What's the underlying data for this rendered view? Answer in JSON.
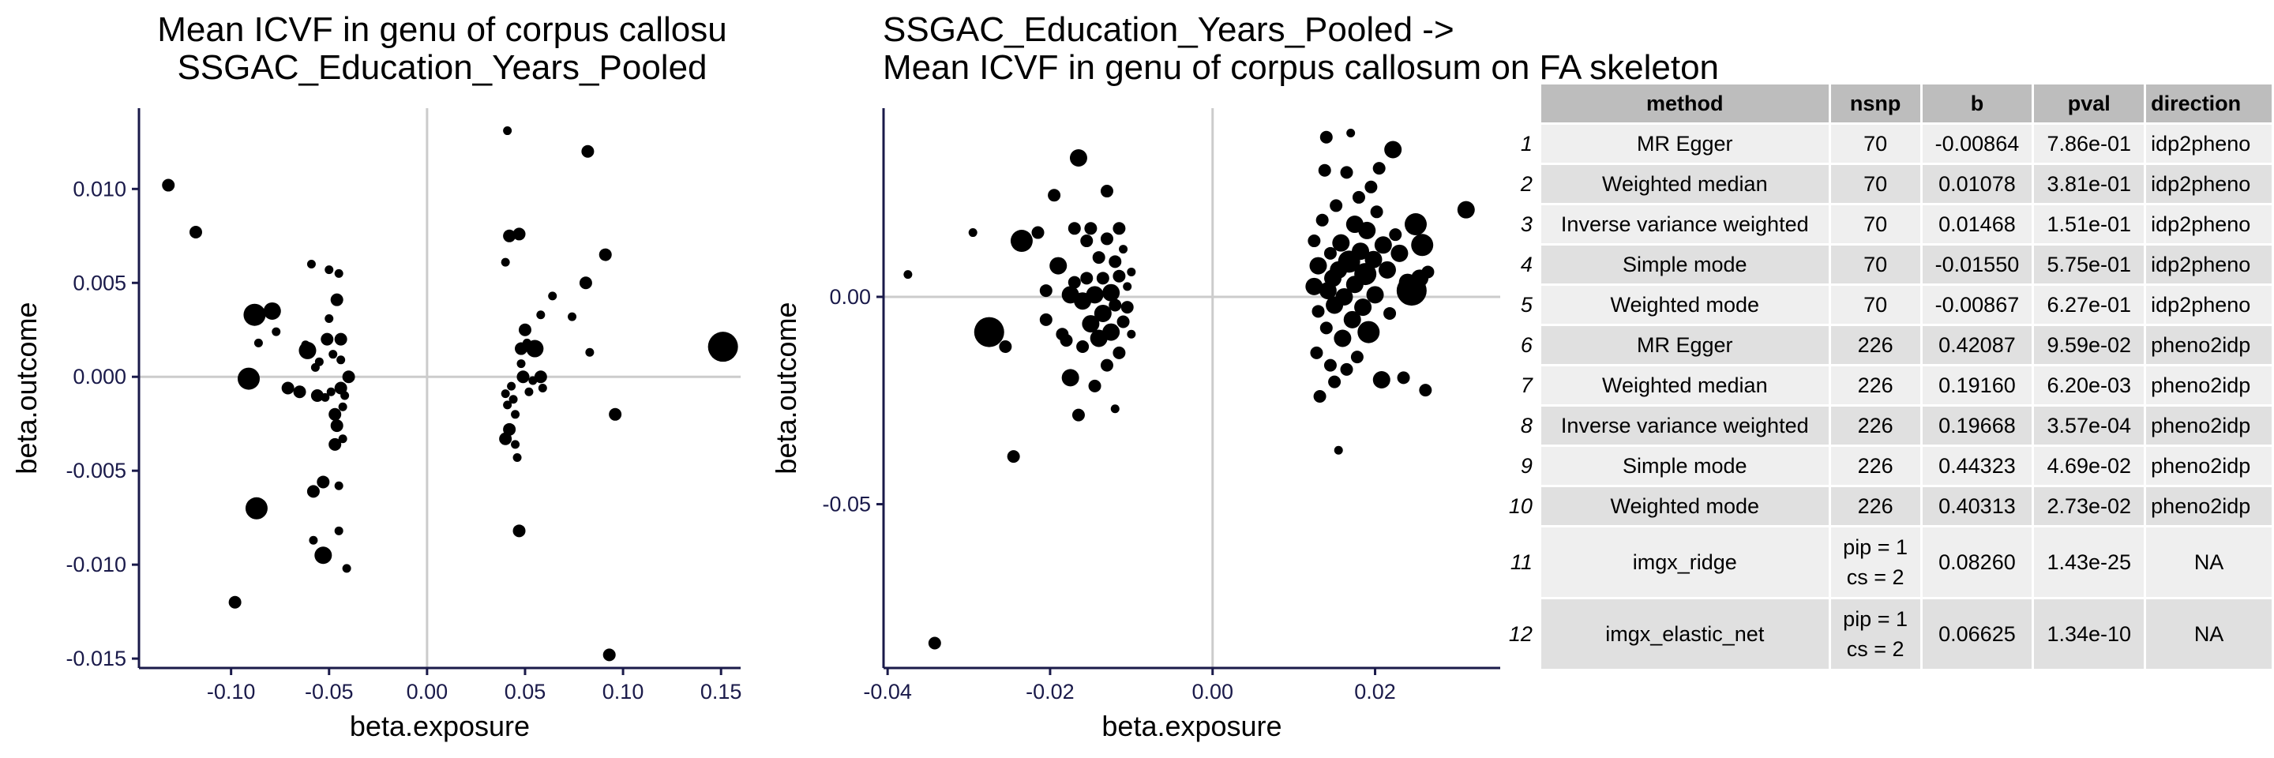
{
  "chart_data": [
    {
      "type": "scatter",
      "title": "Mean ICVF in genu of corpus callosu\n SSGAC_Education_Years_Pooled",
      "title_lines": [
        "Mean ICVF in genu of corpus callosu",
        " SSGAC_Education_Years_Pooled"
      ],
      "xlabel": "beta.exposure",
      "ylabel": "beta.outcome",
      "xlim": [
        -0.147,
        0.16
      ],
      "ylim": [
        -0.0155,
        0.0143
      ],
      "x_ticks": [
        -0.1,
        -0.05,
        0.0,
        0.05,
        0.1,
        0.15
      ],
      "x_tick_labels": [
        "-0.10",
        "-0.05",
        "0.00",
        "0.05",
        "0.10",
        "0.15"
      ],
      "y_ticks": [
        -0.015,
        -0.01,
        -0.005,
        0.0,
        0.005,
        0.01
      ],
      "y_tick_labels": [
        "-0.015",
        "-0.010",
        "-0.005",
        "0.000",
        "0.005",
        "0.010"
      ],
      "reference_lines": {
        "x": 0,
        "y": 0
      },
      "grid": false,
      "points": [
        [
          -0.132,
          0.0102,
          2
        ],
        [
          -0.118,
          0.0077,
          2
        ],
        [
          -0.098,
          -0.012,
          2
        ],
        [
          -0.088,
          0.0033,
          4
        ],
        [
          -0.087,
          -0.007,
          4
        ],
        [
          -0.091,
          -0.0001,
          4
        ],
        [
          -0.086,
          0.0018,
          1
        ],
        [
          -0.079,
          0.0035,
          3
        ],
        [
          -0.077,
          0.0024,
          1
        ],
        [
          -0.071,
          -0.0006,
          2
        ],
        [
          -0.065,
          -0.0008,
          2
        ],
        [
          -0.062,
          0.0017,
          1
        ],
        [
          -0.061,
          0.0014,
          3
        ],
        [
          -0.059,
          0.006,
          1
        ],
        [
          -0.058,
          -0.0061,
          2
        ],
        [
          -0.058,
          -0.0087,
          1
        ],
        [
          -0.057,
          0.0005,
          1
        ],
        [
          -0.056,
          -0.001,
          2
        ],
        [
          -0.055,
          0.0008,
          1
        ],
        [
          -0.053,
          -0.0095,
          3
        ],
        [
          -0.053,
          -0.0056,
          2
        ],
        [
          -0.052,
          -0.0011,
          1
        ],
        [
          -0.051,
          0.002,
          2
        ],
        [
          -0.05,
          0.0057,
          1
        ],
        [
          -0.05,
          0.0031,
          1
        ],
        [
          -0.049,
          -0.0008,
          1
        ],
        [
          -0.048,
          0.0012,
          1
        ],
        [
          -0.047,
          -0.002,
          2
        ],
        [
          -0.047,
          -0.0036,
          2
        ],
        [
          -0.046,
          0.0041,
          2
        ],
        [
          -0.046,
          -0.0026,
          2
        ],
        [
          -0.045,
          0.0055,
          1
        ],
        [
          -0.045,
          -0.0058,
          1
        ],
        [
          -0.045,
          -0.0082,
          1
        ],
        [
          -0.044,
          0.002,
          2
        ],
        [
          -0.044,
          0.0009,
          1
        ],
        [
          -0.044,
          -0.0006,
          2
        ],
        [
          -0.043,
          -0.0016,
          1
        ],
        [
          -0.043,
          -0.0033,
          1
        ],
        [
          -0.042,
          -0.001,
          1
        ],
        [
          -0.041,
          -0.0102,
          1
        ],
        [
          -0.04,
          0.0,
          2
        ],
        [
          0.041,
          0.0131,
          1
        ],
        [
          0.04,
          0.0061,
          1
        ],
        [
          0.042,
          0.0075,
          2
        ],
        [
          0.04,
          -0.0009,
          1
        ],
        [
          0.04,
          -0.0033,
          2
        ],
        [
          0.041,
          -0.0015,
          1
        ],
        [
          0.042,
          -0.0028,
          2
        ],
        [
          0.043,
          -0.0005,
          1
        ],
        [
          0.044,
          -0.0012,
          1
        ],
        [
          0.045,
          -0.002,
          1
        ],
        [
          0.045,
          -0.0036,
          1
        ],
        [
          0.046,
          -0.0043,
          1
        ],
        [
          0.047,
          0.0076,
          2
        ],
        [
          0.047,
          -0.0082,
          2
        ],
        [
          0.048,
          0.0015,
          2
        ],
        [
          0.048,
          0.0007,
          1
        ],
        [
          0.049,
          0.0,
          2
        ],
        [
          0.05,
          0.0025,
          2
        ],
        [
          0.051,
          0.0018,
          1
        ],
        [
          0.052,
          -0.0008,
          1
        ],
        [
          0.054,
          -0.0002,
          1
        ],
        [
          0.055,
          0.0015,
          3
        ],
        [
          0.058,
          0.0,
          2
        ],
        [
          0.058,
          0.0033,
          1
        ],
        [
          0.059,
          -0.0006,
          1
        ],
        [
          0.064,
          0.0043,
          1
        ],
        [
          0.074,
          0.0032,
          1
        ],
        [
          0.082,
          0.012,
          2
        ],
        [
          0.081,
          0.005,
          2
        ],
        [
          0.083,
          0.0013,
          1
        ],
        [
          0.091,
          0.0065,
          2
        ],
        [
          0.093,
          -0.0148,
          2
        ],
        [
          0.096,
          -0.002,
          2
        ],
        [
          0.151,
          0.0016,
          5
        ]
      ]
    },
    {
      "type": "scatter",
      "title": "SSGAC_Education_Years_Pooled ->\n Mean ICVF in genu of corpus callosum on FA skeleton",
      "title_lines": [
        "SSGAC_Education_Years_Pooled ->",
        " Mean ICVF in genu of corpus callosum on FA skeleton"
      ],
      "xlabel": "beta.exposure",
      "ylabel": "beta.outcome",
      "xlim": [
        -0.0405,
        0.0354
      ],
      "ylim": [
        -0.0895,
        0.0455
      ],
      "x_ticks": [
        -0.04,
        -0.02,
        0.0,
        0.02
      ],
      "x_tick_labels": [
        "-0.04",
        "-0.02",
        "0.00",
        "0.02"
      ],
      "y_ticks": [
        -0.05,
        0.0
      ],
      "y_tick_labels": [
        "-0.05",
        "0.00"
      ],
      "reference_lines": {
        "x": 0,
        "y": 0
      },
      "grid": false,
      "points": [
        [
          -0.0375,
          0.0054,
          1
        ],
        [
          -0.0342,
          -0.0835,
          2
        ],
        [
          -0.0295,
          0.0155,
          1
        ],
        [
          -0.0275,
          -0.0085,
          5
        ],
        [
          -0.0255,
          -0.012,
          2
        ],
        [
          -0.0245,
          -0.0385,
          2
        ],
        [
          -0.0235,
          0.0135,
          4
        ],
        [
          -0.0215,
          0.0155,
          2
        ],
        [
          -0.0205,
          0.0015,
          2
        ],
        [
          -0.0205,
          -0.0055,
          2
        ],
        [
          -0.0195,
          0.0245,
          2
        ],
        [
          -0.019,
          0.0075,
          3
        ],
        [
          -0.0185,
          -0.009,
          2
        ],
        [
          -0.018,
          -0.0105,
          2
        ],
        [
          -0.0175,
          0.0005,
          3
        ],
        [
          -0.0175,
          -0.0195,
          3
        ],
        [
          -0.017,
          0.0165,
          2
        ],
        [
          -0.017,
          0.0035,
          2
        ],
        [
          -0.0165,
          0.0335,
          3
        ],
        [
          -0.0165,
          -0.0285,
          2
        ],
        [
          -0.016,
          -0.001,
          3
        ],
        [
          -0.016,
          -0.012,
          2
        ],
        [
          -0.0155,
          0.0045,
          2
        ],
        [
          -0.0155,
          0.0135,
          2
        ],
        [
          -0.015,
          0.0165,
          2
        ],
        [
          -0.015,
          -0.0065,
          3
        ],
        [
          -0.0145,
          0.0005,
          3
        ],
        [
          -0.0145,
          -0.0215,
          2
        ],
        [
          -0.014,
          0.0095,
          2
        ],
        [
          -0.014,
          -0.01,
          3
        ],
        [
          -0.0135,
          0.0045,
          2
        ],
        [
          -0.0135,
          -0.004,
          3
        ],
        [
          -0.013,
          0.0255,
          2
        ],
        [
          -0.013,
          0.014,
          2
        ],
        [
          -0.013,
          -0.0165,
          2
        ],
        [
          -0.0125,
          0.001,
          3
        ],
        [
          -0.0125,
          -0.0085,
          3
        ],
        [
          -0.012,
          0.0085,
          2
        ],
        [
          -0.012,
          -0.002,
          2
        ],
        [
          -0.012,
          -0.027,
          1
        ],
        [
          -0.0115,
          0.0165,
          2
        ],
        [
          -0.0115,
          0.005,
          2
        ],
        [
          -0.0115,
          -0.0135,
          2
        ],
        [
          -0.011,
          0.0115,
          1
        ],
        [
          -0.011,
          -0.006,
          2
        ],
        [
          -0.0105,
          -0.0025,
          2
        ],
        [
          -0.0105,
          0.0025,
          1
        ],
        [
          -0.01,
          -0.009,
          1
        ],
        [
          -0.01,
          0.006,
          1
        ],
        [
          0.0125,
          0.0135,
          2
        ],
        [
          0.0125,
          0.0025,
          3
        ],
        [
          0.0128,
          -0.0135,
          2
        ],
        [
          0.013,
          0.0075,
          3
        ],
        [
          0.013,
          -0.0035,
          2
        ],
        [
          0.0132,
          -0.024,
          2
        ],
        [
          0.0135,
          0.0185,
          2
        ],
        [
          0.0138,
          0.0305,
          2
        ],
        [
          0.014,
          0.0385,
          2
        ],
        [
          0.014,
          -0.0075,
          2
        ],
        [
          0.0142,
          0.0015,
          3
        ],
        [
          0.0145,
          0.0105,
          2
        ],
        [
          0.0145,
          -0.0165,
          2
        ],
        [
          0.0148,
          0.0045,
          3
        ],
        [
          0.015,
          -0.002,
          3
        ],
        [
          0.015,
          -0.0205,
          2
        ],
        [
          0.0152,
          0.022,
          2
        ],
        [
          0.0155,
          0.0065,
          3
        ],
        [
          0.0155,
          -0.037,
          1
        ],
        [
          0.0158,
          0.013,
          3
        ],
        [
          0.016,
          -0.01,
          3
        ],
        [
          0.0162,
          0.0,
          3
        ],
        [
          0.0165,
          0.03,
          2
        ],
        [
          0.0165,
          -0.0175,
          2
        ],
        [
          0.0168,
          0.0085,
          4
        ],
        [
          0.017,
          0.0395,
          1
        ],
        [
          0.0172,
          -0.0055,
          3
        ],
        [
          0.0175,
          0.0175,
          3
        ],
        [
          0.0175,
          0.003,
          3
        ],
        [
          0.0178,
          -0.0145,
          2
        ],
        [
          0.018,
          0.024,
          2
        ],
        [
          0.0182,
          0.011,
          3
        ],
        [
          0.0185,
          -0.0025,
          3
        ],
        [
          0.0188,
          0.0055,
          4
        ],
        [
          0.019,
          0.016,
          3
        ],
        [
          0.0192,
          -0.0085,
          4
        ],
        [
          0.0195,
          0.0265,
          2
        ],
        [
          0.0198,
          0.009,
          3
        ],
        [
          0.02,
          0.0005,
          3
        ],
        [
          0.0202,
          0.0205,
          2
        ],
        [
          0.0205,
          0.031,
          2
        ],
        [
          0.0208,
          -0.02,
          3
        ],
        [
          0.021,
          0.0125,
          3
        ],
        [
          0.0215,
          0.0065,
          3
        ],
        [
          0.0218,
          -0.004,
          2
        ],
        [
          0.0222,
          0.0355,
          3
        ],
        [
          0.0225,
          0.015,
          2
        ],
        [
          0.023,
          0.0105,
          3
        ],
        [
          0.0235,
          -0.0195,
          2
        ],
        [
          0.024,
          0.0035,
          3
        ],
        [
          0.0245,
          0.0015,
          5
        ],
        [
          0.025,
          0.0175,
          4
        ],
        [
          0.0255,
          0.0045,
          3
        ],
        [
          0.0258,
          0.0125,
          4
        ],
        [
          0.0262,
          -0.0225,
          2
        ],
        [
          0.0265,
          0.006,
          2
        ],
        [
          0.0312,
          0.021,
          3
        ]
      ]
    }
  ],
  "table": {
    "headers": [
      "method",
      "nsnp",
      "b",
      "pval",
      "direction"
    ],
    "rows": [
      {
        "row": "1",
        "method": "MR Egger",
        "nsnp": "70",
        "b": "-0.00864",
        "pval": "7.86e-01",
        "direction": "idp2pheno"
      },
      {
        "row": "2",
        "method": "Weighted median",
        "nsnp": "70",
        "b": "0.01078",
        "pval": "3.81e-01",
        "direction": "idp2pheno"
      },
      {
        "row": "3",
        "method": "Inverse variance weighted",
        "nsnp": "70",
        "b": "0.01468",
        "pval": "1.51e-01",
        "direction": "idp2pheno"
      },
      {
        "row": "4",
        "method": "Simple mode",
        "nsnp": "70",
        "b": "-0.01550",
        "pval": "5.75e-01",
        "direction": "idp2pheno"
      },
      {
        "row": "5",
        "method": "Weighted mode",
        "nsnp": "70",
        "b": "-0.00867",
        "pval": "6.27e-01",
        "direction": "idp2pheno"
      },
      {
        "row": "6",
        "method": "MR Egger",
        "nsnp": "226",
        "b": "0.42087",
        "pval": "9.59e-02",
        "direction": "pheno2idp"
      },
      {
        "row": "7",
        "method": "Weighted median",
        "nsnp": "226",
        "b": "0.19160",
        "pval": "6.20e-03",
        "direction": "pheno2idp"
      },
      {
        "row": "8",
        "method": "Inverse variance weighted",
        "nsnp": "226",
        "b": "0.19668",
        "pval": "3.57e-04",
        "direction": "pheno2idp"
      },
      {
        "row": "9",
        "method": "Simple mode",
        "nsnp": "226",
        "b": "0.44323",
        "pval": "4.69e-02",
        "direction": "pheno2idp"
      },
      {
        "row": "10",
        "method": "Weighted mode",
        "nsnp": "226",
        "b": "0.40313",
        "pval": "2.73e-02",
        "direction": "pheno2idp"
      },
      {
        "row": "11",
        "method": "imgx_ridge",
        "nsnp_lines": [
          "pip = 1",
          "cs = 2"
        ],
        "b": "0.08260",
        "pval": "1.43e-25",
        "direction": "NA"
      },
      {
        "row": "12",
        "method": "imgx_elastic_net",
        "nsnp_lines": [
          "pip = 1",
          "cs = 2"
        ],
        "b": "0.06625",
        "pval": "1.34e-10",
        "direction": "NA"
      }
    ]
  },
  "colors": {
    "points": "#000000",
    "axis": "#1a1a4a",
    "reference_line": "#cccccc",
    "header_bg": "#bdbdbd",
    "row_light": "#efefef",
    "row_dark": "#e0e0e0"
  }
}
